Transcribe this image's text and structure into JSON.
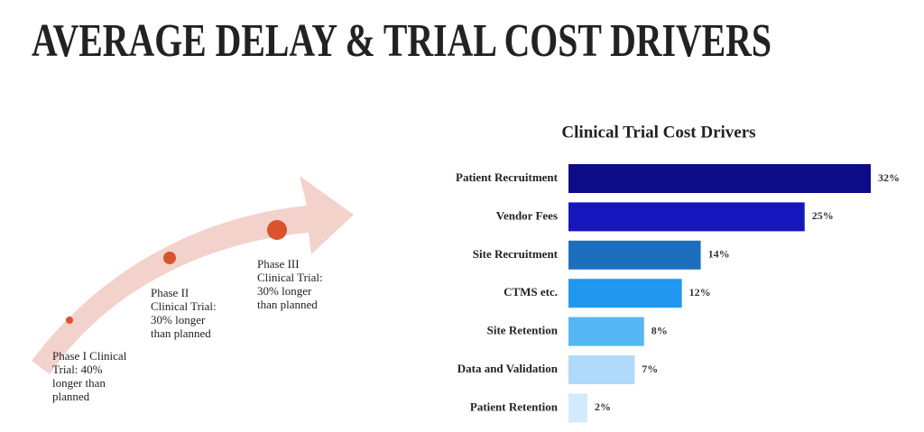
{
  "title": "AVERAGE DELAY & TRIAL COST DRIVERS",
  "phases": [
    {
      "lines": [
        "Phase I Clinical",
        "Trial: 40%",
        "longer than",
        "planned"
      ]
    },
    {
      "lines": [
        "Phase II",
        "Clinical Trial:",
        "30% longer",
        "than planned"
      ]
    },
    {
      "lines": [
        "Phase III",
        "Clinical Trial:",
        "30% longer",
        "than planned"
      ]
    }
  ],
  "chart_data": {
    "type": "bar",
    "orientation": "horizontal",
    "title": "Clinical Trial Cost Drivers",
    "categories": [
      "Patient Recruitment",
      "Vendor Fees",
      "Site Recruitment",
      "CTMS etc.",
      "Site Retention",
      "Data and Validation",
      "Patient Retention"
    ],
    "values": [
      32,
      25,
      14,
      12,
      8,
      7,
      2
    ],
    "value_labels": [
      "32%",
      "25%",
      "14%",
      "12%",
      "8%",
      "7%",
      "2%"
    ],
    "colors": [
      "#0c0c86",
      "#1616bd",
      "#1d6fbd",
      "#2197ef",
      "#56b6f4",
      "#afdafa",
      "#d2ebfb"
    ]
  }
}
